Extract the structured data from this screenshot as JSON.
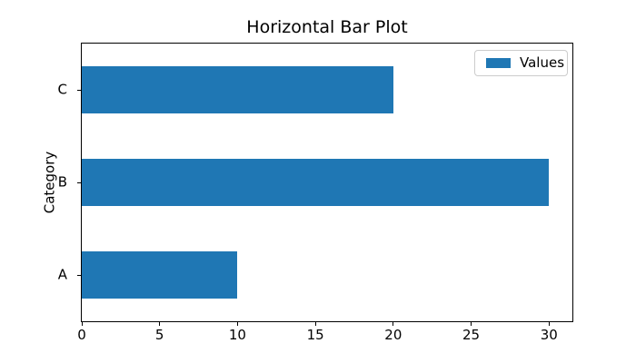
{
  "chart_data": {
    "type": "bar",
    "orientation": "horizontal",
    "title": "Horizontal Bar Plot",
    "xlabel": "",
    "ylabel": "Category",
    "categories": [
      "A",
      "B",
      "C"
    ],
    "values": [
      10,
      30,
      20
    ],
    "xlim": [
      0,
      31.5
    ],
    "xticks": [
      0,
      5,
      10,
      15,
      20,
      25,
      30
    ],
    "grid": false,
    "legend": {
      "entries": [
        "Values"
      ],
      "position": "upper right"
    },
    "bar_color": "#1f77b4",
    "axis_color": "#000000",
    "legend_border_color": "#cccccc"
  }
}
